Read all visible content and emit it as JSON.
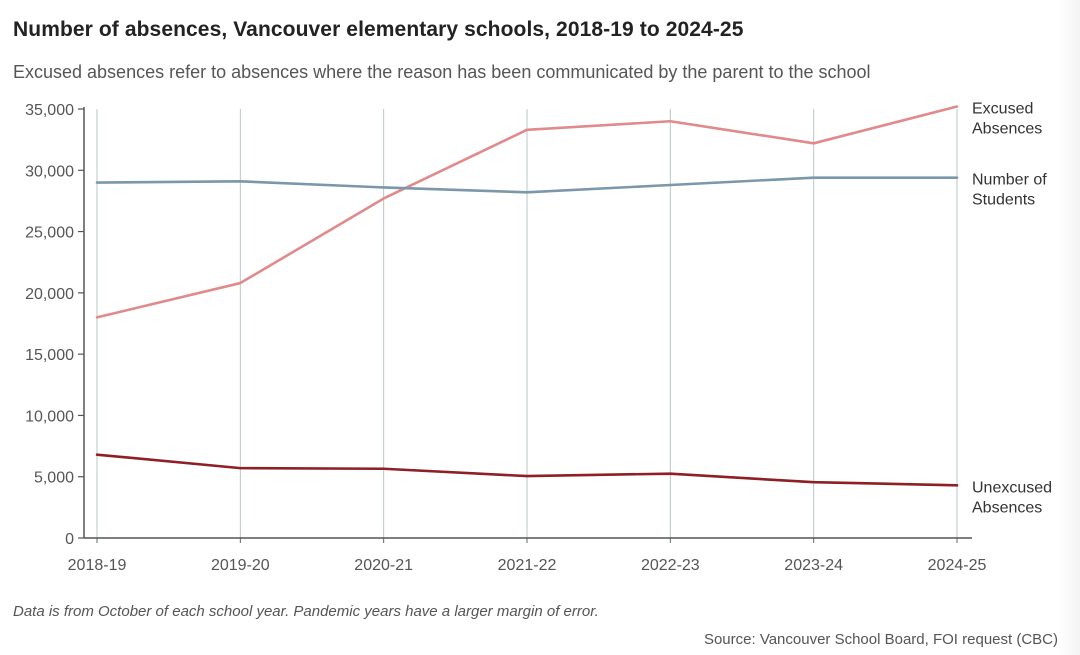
{
  "header": {
    "title": "Number of absences, Vancouver elementary schools, 2018-19 to 2024-25",
    "subtitle": "Excused absences refer to absences where the reason has been communicated by the parent to the school"
  },
  "footer": {
    "note": "Data is from October of each school year. Pandemic years have a larger margin of error.",
    "source": "Source: Vancouver School Board, FOI request (CBC)"
  },
  "chart_data": {
    "type": "line",
    "title": "Number of absences, Vancouver elementary schools, 2018-19 to 2024-25",
    "xlabel": "",
    "ylabel": "",
    "categories": [
      "2018-19",
      "2019-20",
      "2020-21",
      "2021-22",
      "2022-23",
      "2023-24",
      "2024-25"
    ],
    "ylim": [
      0,
      35000
    ],
    "yticks": [
      0,
      5000,
      10000,
      15000,
      20000,
      25000,
      30000,
      35000
    ],
    "ytick_labels": [
      "0",
      "5,000",
      "10,000",
      "15,000",
      "20,000",
      "25,000",
      "30,000",
      "35,000"
    ],
    "grid": "vertical",
    "series": [
      {
        "name": "Excused Absences",
        "label_lines": [
          "Excused",
          "Absences"
        ],
        "color": "#e08a8c",
        "values": [
          18000,
          20800,
          27700,
          33300,
          34000,
          32200,
          35200
        ]
      },
      {
        "name": "Number of Students",
        "label_lines": [
          "Number of",
          "Students"
        ],
        "color": "#7a97ab",
        "values": [
          29000,
          29100,
          28600,
          28200,
          28800,
          29400,
          29400
        ]
      },
      {
        "name": "Unexcused Absences",
        "label_lines": [
          "Unexcused",
          "Absences"
        ],
        "color": "#8e1f24",
        "values": [
          6800,
          5700,
          5650,
          5050,
          5250,
          4550,
          4300
        ]
      }
    ]
  }
}
